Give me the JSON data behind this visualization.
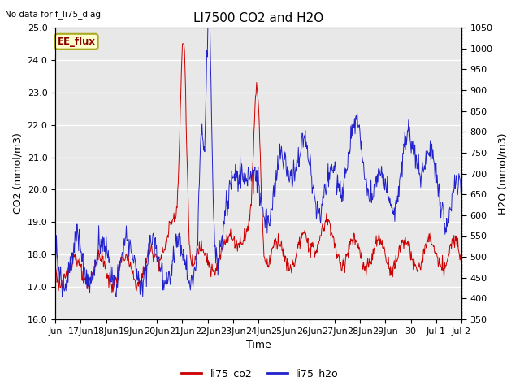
{
  "title": "LI7500 CO2 and H2O",
  "top_left_text": "No data for f_li75_diag",
  "xlabel": "Time",
  "ylabel_left": "CO2 (mmol/m3)",
  "ylabel_right": "H2O (mmol/m3)",
  "ylim_left": [
    16.0,
    25.0
  ],
  "ylim_right": [
    350,
    1050
  ],
  "legend_labels": [
    "li75_co2",
    "li75_h2o"
  ],
  "legend_colors": [
    "#cc0000",
    "#2222cc"
  ],
  "box_label": "EE_flux",
  "box_facecolor": "#ffffcc",
  "box_edgecolor": "#aaa820",
  "background_color": "#e8e8e8",
  "grid_color": "#ffffff",
  "title_fontsize": 11,
  "label_fontsize": 9,
  "tick_fontsize": 8,
  "yticks_left": [
    16.0,
    17.0,
    18.0,
    19.0,
    20.0,
    21.0,
    22.0,
    23.0,
    24.0,
    25.0
  ],
  "yticks_right": [
    350,
    400,
    450,
    500,
    550,
    600,
    650,
    700,
    750,
    800,
    850,
    900,
    950,
    1000,
    1050
  ],
  "xtick_positions": [
    0,
    1,
    2,
    3,
    4,
    5,
    6,
    7,
    8,
    9,
    10,
    11,
    12,
    13,
    14,
    15,
    16
  ],
  "xtick_labels": [
    "Jun",
    "17Jun",
    "18Jun",
    "19Jun",
    "20Jun",
    "21Jun",
    "22Jun",
    "23Jun",
    "24Jun",
    "25Jun",
    "26Jun",
    "27Jun",
    "28Jun",
    "29Jun",
    "30",
    "Jul 1",
    "Jul 2"
  ]
}
